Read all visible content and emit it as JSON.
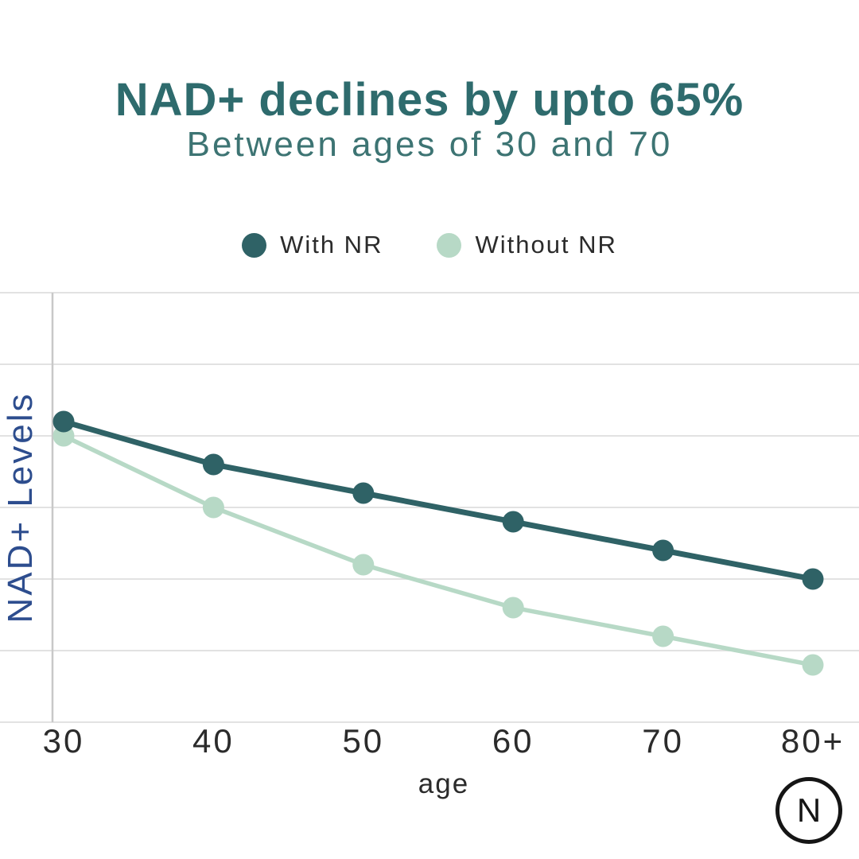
{
  "header": {
    "title": "NAD+ declines by upto 65%",
    "title_color": "#2e6b6d",
    "subtitle": "Between ages of 30 and 70",
    "subtitle_color": "#3d7473"
  },
  "legend": {
    "position": "top-center",
    "items": [
      {
        "label": "With NR",
        "color": "#2f6266"
      },
      {
        "label": "Without NR",
        "color": "#b7d9c6"
      }
    ]
  },
  "logo": {
    "letter": "N"
  },
  "chart_data": {
    "type": "line",
    "title": "NAD+ declines by upto 65%",
    "subtitle": "Between ages of 30 and 70",
    "categories": [
      "30",
      "40",
      "50",
      "60",
      "70",
      "80+"
    ],
    "xlabel": "age",
    "ylabel": "NAD+ Levels",
    "ylim": [
      0,
      6
    ],
    "grid": "horizontal",
    "gridline_values": [
      0,
      1,
      2,
      3,
      4,
      5,
      6
    ],
    "legend_position": "top-center",
    "series": [
      {
        "name": "With NR",
        "color": "#2f6266",
        "values": [
          4.2,
          3.6,
          3.2,
          2.8,
          2.4,
          2.0
        ]
      },
      {
        "name": "Without NR",
        "color": "#b7d9c6",
        "values": [
          4.0,
          3.0,
          2.2,
          1.6,
          1.2,
          0.8
        ]
      }
    ],
    "colors": {
      "gridline": "#e2e2e2",
      "axis_line": "#c8c8c8",
      "tick_label": "#2b2b2b",
      "xlabel_color": "#2b2b2b",
      "ylabel_color": "#2d4d8e"
    }
  }
}
